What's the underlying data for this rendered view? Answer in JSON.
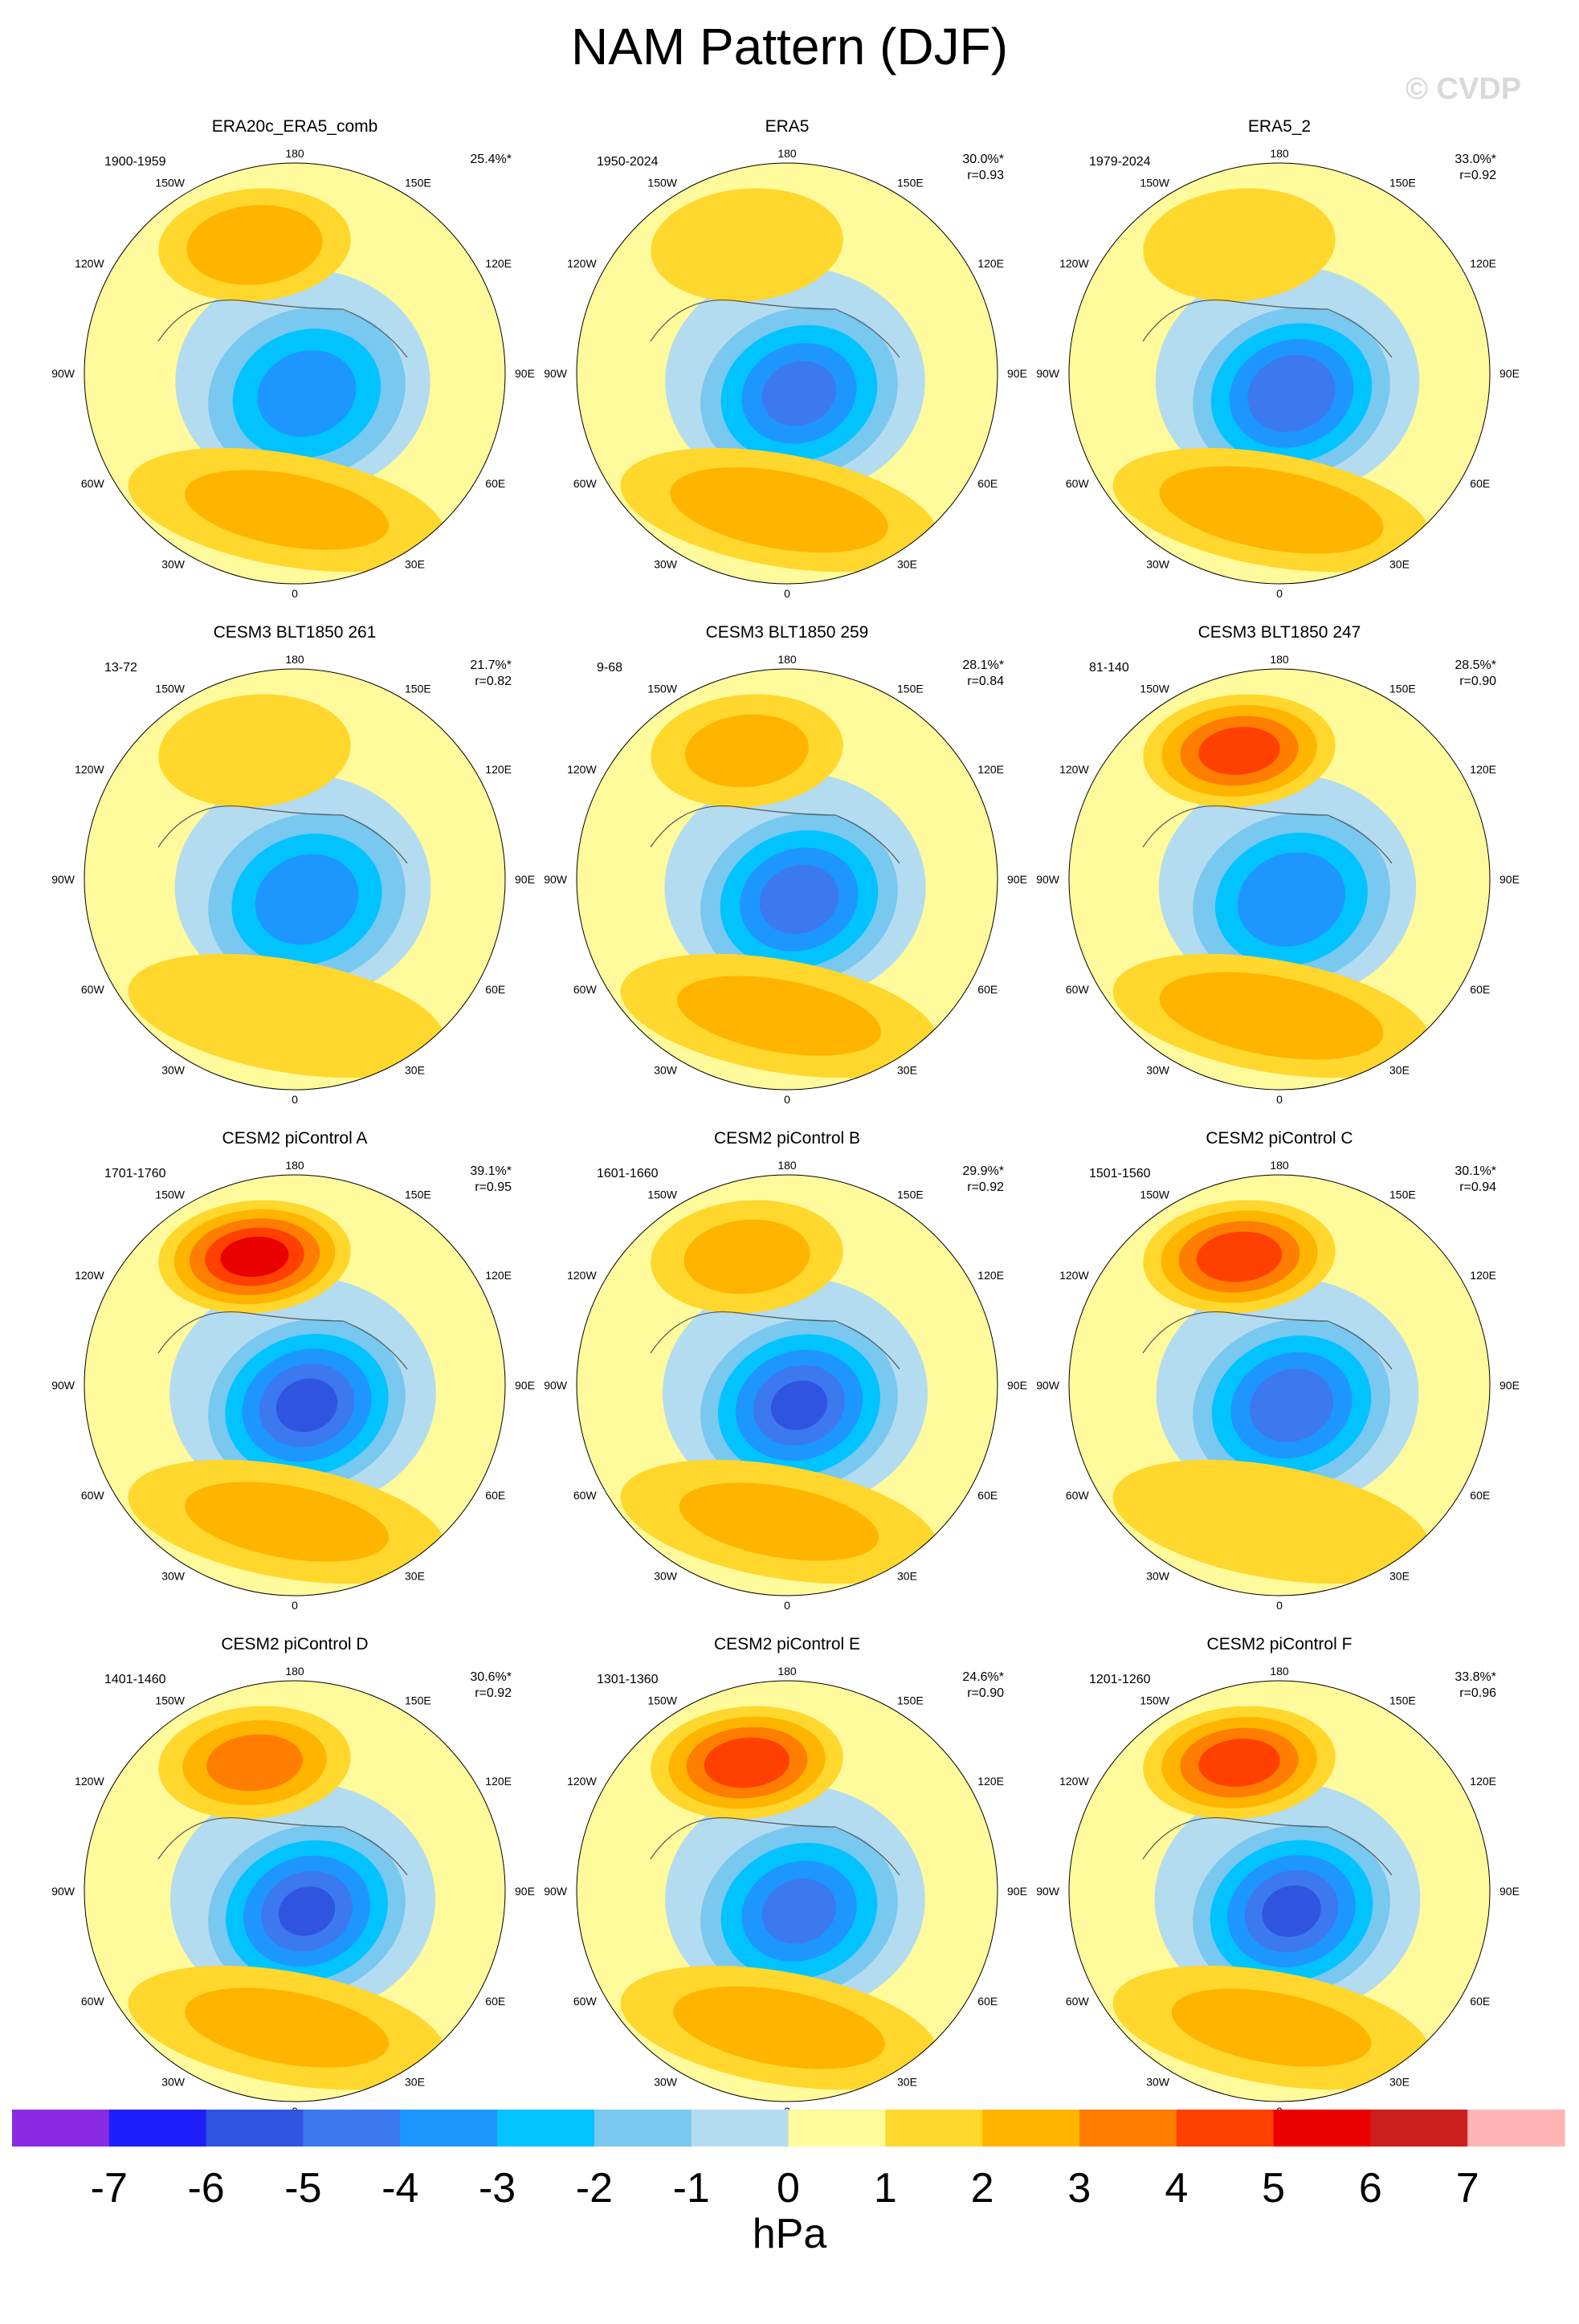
{
  "title": "NAM Pattern (DJF)",
  "watermark": "© CVDP",
  "lon_labels": {
    "deg180": "180",
    "deg150E": "150E",
    "deg120E": "120E",
    "deg90E": "90E",
    "deg60E": "60E",
    "deg30E": "30E",
    "deg0": "0",
    "deg30W": "30W",
    "deg60W": "60W",
    "deg90W": "90W",
    "deg120W": "120W",
    "deg150W": "150W"
  },
  "colors": {
    "neg7": "#8a2be2",
    "neg6": "#1e1efa",
    "neg5": "#2f54e0",
    "neg4": "#3c78f0",
    "neg3": "#1e96ff",
    "neg2": "#00c3ff",
    "neg1": "#78c8f0",
    "zero_neg": "#b4dcf0",
    "zero_pos": "#fffa9b",
    "pos1": "#ffd72d",
    "pos2": "#ffb400",
    "pos3": "#ff7d00",
    "pos4": "#ff4000",
    "pos5": "#eb0000",
    "pos6": "#cd1e1e",
    "pos7": "#ffb4b4",
    "coast": "#555555"
  },
  "colorbar": {
    "unit": "hPa",
    "tick_labels": [
      "-7",
      "-6",
      "-5",
      "-4",
      "-3",
      "-2",
      "-1",
      "0",
      "1",
      "2",
      "3",
      "4",
      "5",
      "6",
      "7"
    ],
    "color_keys": [
      "neg7",
      "neg6",
      "neg5",
      "neg4",
      "neg3",
      "neg2",
      "neg1",
      "zero_neg",
      "zero_pos",
      "pos1",
      "pos2",
      "pos3",
      "pos4",
      "pos5",
      "pos6",
      "pos7"
    ]
  },
  "panels": [
    {
      "title": "ERA20c_ERA5_comb",
      "period": "1900-1959",
      "pct": "25.4%*",
      "r": "",
      "pacific_high": 2.8,
      "icelandic_low": -3.4,
      "atlantic_high": 2.2
    },
    {
      "title": "ERA5",
      "period": "1950-2024",
      "pct": "30.0%*",
      "r": "r=0.93",
      "pacific_high": 1.6,
      "icelandic_low": -4.2,
      "atlantic_high": 2.6
    },
    {
      "title": "ERA5_2",
      "period": "1979-2024",
      "pct": "33.0%*",
      "r": "r=0.92",
      "pacific_high": 1.5,
      "icelandic_low": -4.8,
      "atlantic_high": 2.8
    },
    {
      "title": "CESM3 BLT1850 261",
      "period": "13-72",
      "pct": "21.7%*",
      "r": "r=0.82",
      "pacific_high": 1.8,
      "icelandic_low": -3.6,
      "atlantic_high": 1.8
    },
    {
      "title": "CESM3 BLT1850 259",
      "period": "9-68",
      "pct": "28.1%*",
      "r": "r=0.84",
      "pacific_high": 2.2,
      "icelandic_low": -4.4,
      "atlantic_high": 2.2
    },
    {
      "title": "CESM3 BLT1850 247",
      "period": "81-140",
      "pct": "28.5%*",
      "r": "r=0.90",
      "pacific_high": 4.6,
      "icelandic_low": -3.8,
      "atlantic_high": 2.8
    },
    {
      "title": "CESM2 piControl A",
      "period": "1701-1760",
      "pct": "39.1%*",
      "r": "r=0.95",
      "pacific_high": 5.6,
      "icelandic_low": -5.2,
      "atlantic_high": 2.2
    },
    {
      "title": "CESM2 piControl B",
      "period": "1601-1660",
      "pct": "29.9%*",
      "r": "r=0.92",
      "pacific_high": 2.3,
      "icelandic_low": -5.0,
      "atlantic_high": 2.1
    },
    {
      "title": "CESM2 piControl C",
      "period": "1501-1560",
      "pct": "30.1%*",
      "r": "r=0.94",
      "pacific_high": 4.8,
      "icelandic_low": -4.6,
      "atlantic_high": 1.8
    },
    {
      "title": "CESM2 piControl D",
      "period": "1401-1460",
      "pct": "30.6%*",
      "r": "r=0.92",
      "pacific_high": 3.4,
      "icelandic_low": -5.0,
      "atlantic_high": 2.2
    },
    {
      "title": "CESM2 piControl E",
      "period": "1301-1360",
      "pct": "24.6%*",
      "r": "r=0.90",
      "pacific_high": 4.8,
      "icelandic_low": -4.2,
      "atlantic_high": 2.4
    },
    {
      "title": "CESM2 piControl F",
      "period": "1201-1260",
      "pct": "33.8%*",
      "r": "r=0.96",
      "pacific_high": 4.6,
      "icelandic_low": -5.1,
      "atlantic_high": 2.1
    }
  ]
}
